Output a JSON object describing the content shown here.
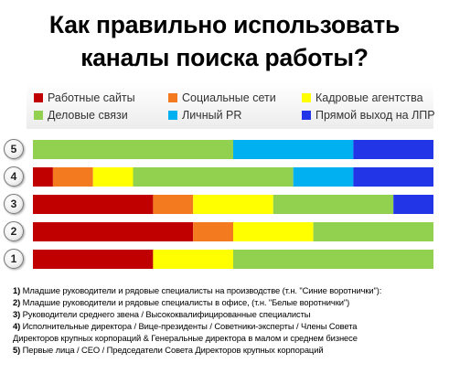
{
  "title_lines": [
    "Как правильно использовать",
    "каналы поиска работы?"
  ],
  "colors": {
    "Работные сайты": "#c00000",
    "Социальные сети": "#f47a20",
    "Кадровые агентства": "#ffff00",
    "Деловые связи": "#92d050",
    "Личный PR": "#00b0f0",
    "Прямой выход на ЛПР": "#2236e8"
  },
  "chart_data": {
    "type": "bar",
    "orientation": "horizontal",
    "stacked": true,
    "normalized": true,
    "title": "Как правильно использовать каналы поиска работы?",
    "legend_position": "top",
    "categories": [
      "5",
      "4",
      "3",
      "2",
      "1"
    ],
    "series": [
      {
        "name": "Работные сайты",
        "values": [
          0,
          5,
          30,
          40,
          30
        ]
      },
      {
        "name": "Социальные сети",
        "values": [
          0,
          10,
          10,
          10,
          0
        ]
      },
      {
        "name": "Кадровые агентства",
        "values": [
          0,
          10,
          20,
          20,
          20
        ]
      },
      {
        "name": "Деловые связи",
        "values": [
          50,
          40,
          30,
          30,
          50
        ]
      },
      {
        "name": "Личный PR",
        "values": [
          30,
          15,
          0,
          0,
          0
        ]
      },
      {
        "name": "Прямой выход на ЛПР",
        "values": [
          20,
          20,
          10,
          0,
          0
        ]
      }
    ]
  },
  "footnotes": [
    {
      "num": "1)",
      "text": " Младшие руководители и рядовые  специалисты на производстве (т.н. \"Синие воротнички\"):"
    },
    {
      "num": "2)",
      "text": " Младшие руководители и рядовые специалисты в офисе, (т.н. \"Белые воротнички\")"
    },
    {
      "num": "3)",
      "text": " Руководители среднего звена  / Высококвалифицированные  специалисты"
    },
    {
      "num": "4)",
      "text": " Исполнительные директора / Вице-президенты / Советники-эксперты / Члены Совета"
    },
    {
      "num": "",
      "text": "Директоров крупных корпораций  & Генеральные  директора в малом и среднем  бизнесе"
    },
    {
      "num": "5)",
      "text": " Первые  лица / CEO  / Председатели Совета Директоров крупных корпораций"
    }
  ]
}
